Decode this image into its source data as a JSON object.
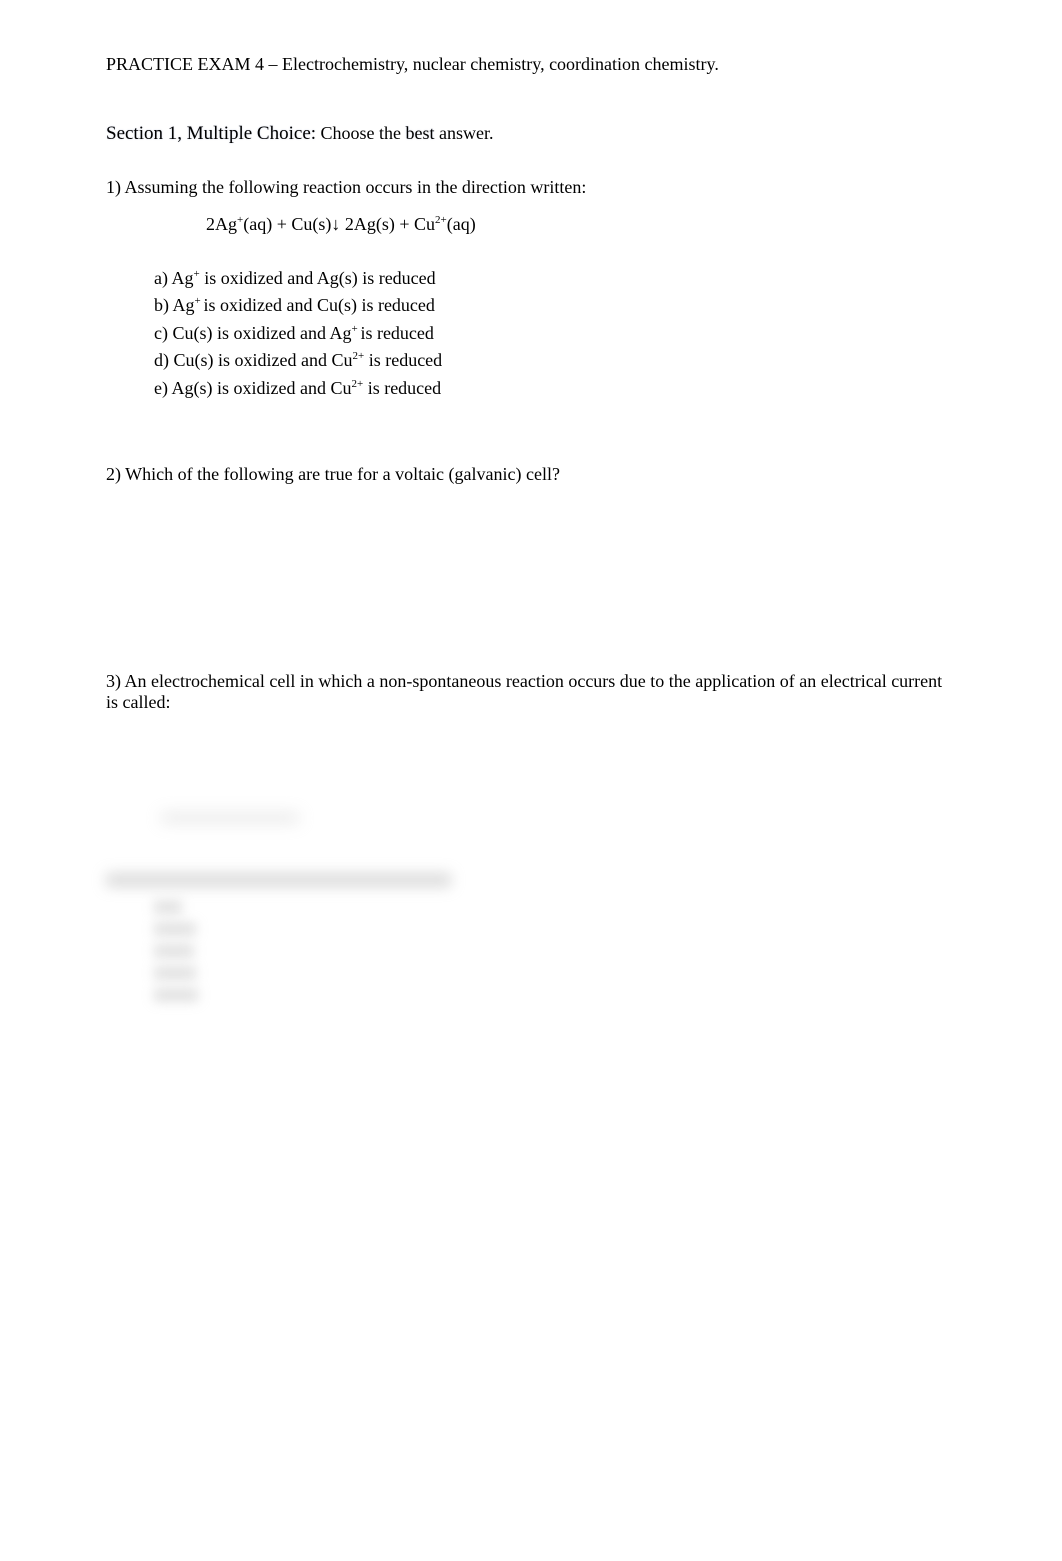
{
  "title": "PRACTICE EXAM 4 – Electrochemistry, nuclear chemistry, coordination chemistry.",
  "section": {
    "label": "Section 1, Multiple Choice:",
    "instruction_pre": "  Choose the ",
    "instruction_best": "best",
    "instruction_post": "  answer."
  },
  "q1": {
    "prompt": "1) Assuming the following reaction occurs in the direction written:",
    "eq_pre": "2Ag",
    "eq_sup1": "+",
    "eq_mid1": "(aq) + Cu(s)↓   2Ag(s) + Cu",
    "eq_sup2": "2+",
    "eq_post": "(aq)",
    "a_pre": "a) Ag",
    "a_sup": "+",
    "a_post": " is oxidized and Ag(s) is reduced",
    "b_pre": "b) Ag",
    "b_sup": "+ ",
    "b_post": "is oxidized and Cu(s) is reduced",
    "c_pre": "c) Cu(s) is oxidized and Ag",
    "c_sup": "+ ",
    "c_post": "is reduced",
    "d_pre": "d) Cu(s) is oxidized and Cu",
    "d_sup": "2+",
    "d_post": " is reduced",
    "e_pre": "e) Ag(s) is oxidized and Cu",
    "e_sup": "2+",
    "e_post": " is reduced"
  },
  "q2": {
    "prompt": "2) Which of the following are true for a voltaic (galvanic) cell?"
  },
  "q3": {
    "prompt": "3) An electrochemical cell in which a non-spontaneous reaction occurs due to the application of an electrical current is called:"
  }
}
